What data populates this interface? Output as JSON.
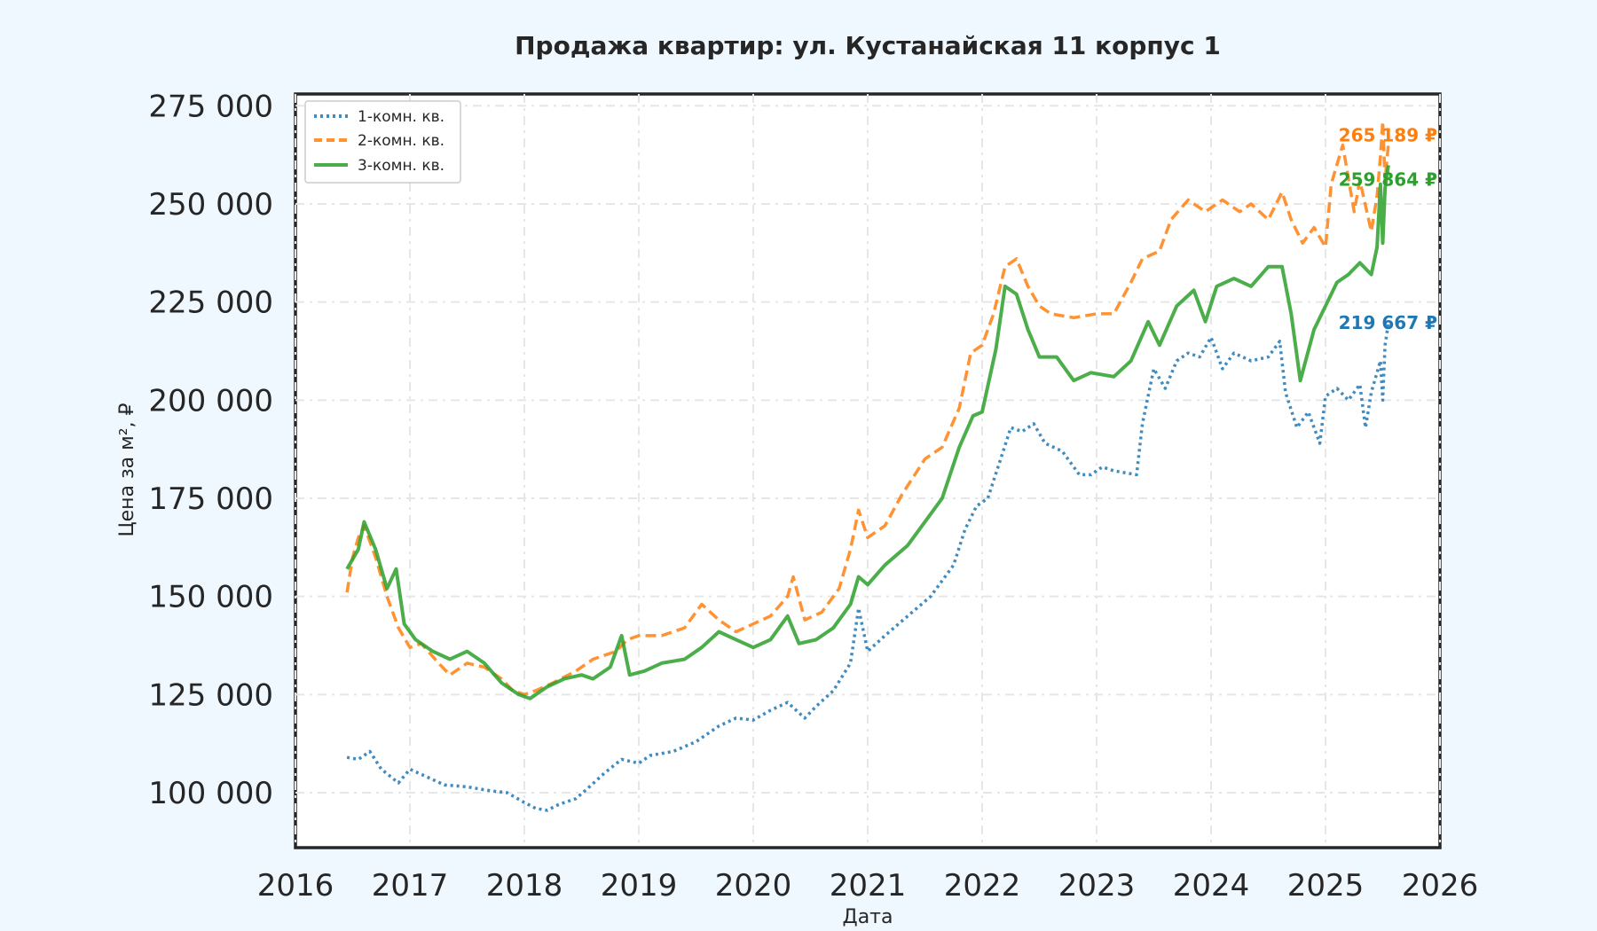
{
  "chart_data": {
    "type": "line",
    "title": "Продажа квартир: ул. Кустанайская 11 корпус 1",
    "xlabel": "Дата",
    "ylabel": "Цена за м², ₽",
    "xlim": [
      2016.0,
      2026.0
    ],
    "ylim": [
      86000,
      278000
    ],
    "x_ticks": [
      2016,
      2017,
      2018,
      2019,
      2020,
      2021,
      2022,
      2023,
      2024,
      2025,
      2026
    ],
    "x_tick_labels": [
      "2016",
      "2017",
      "2018",
      "2019",
      "2020",
      "2021",
      "2022",
      "2023",
      "2024",
      "2025",
      "2026"
    ],
    "y_ticks": [
      100000,
      125000,
      150000,
      175000,
      200000,
      225000,
      250000,
      275000
    ],
    "y_tick_labels": [
      "100 000",
      "125 000",
      "150 000",
      "175 000",
      "200 000",
      "225 000",
      "250 000",
      "275 000"
    ],
    "grid": true,
    "legend_position": "top-left",
    "series": [
      {
        "name": "1-комн. кв.",
        "color": "#1f77b4",
        "style": "dotted",
        "end_label": "219 667 ₽",
        "end_value": 219667,
        "points": [
          [
            2016.45,
            109000
          ],
          [
            2016.55,
            108500
          ],
          [
            2016.65,
            110500
          ],
          [
            2016.75,
            106000
          ],
          [
            2016.9,
            102500
          ],
          [
            2017.0,
            106000
          ],
          [
            2017.15,
            104000
          ],
          [
            2017.3,
            102000
          ],
          [
            2017.5,
            101500
          ],
          [
            2017.7,
            100500
          ],
          [
            2017.85,
            100000
          ],
          [
            2018.0,
            97500
          ],
          [
            2018.1,
            96000
          ],
          [
            2018.2,
            95500
          ],
          [
            2018.3,
            97000
          ],
          [
            2018.45,
            98500
          ],
          [
            2018.55,
            101000
          ],
          [
            2018.7,
            105000
          ],
          [
            2018.85,
            108500
          ],
          [
            2019.0,
            107500
          ],
          [
            2019.1,
            109500
          ],
          [
            2019.3,
            110500
          ],
          [
            2019.5,
            113000
          ],
          [
            2019.7,
            117000
          ],
          [
            2019.85,
            119000
          ],
          [
            2020.0,
            118500
          ],
          [
            2020.15,
            121000
          ],
          [
            2020.3,
            123000
          ],
          [
            2020.45,
            119000
          ],
          [
            2020.55,
            122000
          ],
          [
            2020.7,
            126000
          ],
          [
            2020.85,
            133000
          ],
          [
            2020.92,
            147000
          ],
          [
            2021.0,
            136000
          ],
          [
            2021.15,
            140000
          ],
          [
            2021.35,
            145000
          ],
          [
            2021.55,
            150000
          ],
          [
            2021.75,
            158000
          ],
          [
            2021.85,
            167000
          ],
          [
            2021.95,
            173000
          ],
          [
            2022.05,
            175000
          ],
          [
            2022.15,
            184000
          ],
          [
            2022.25,
            193000
          ],
          [
            2022.35,
            192000
          ],
          [
            2022.45,
            194000
          ],
          [
            2022.55,
            189000
          ],
          [
            2022.7,
            187000
          ],
          [
            2022.85,
            181000
          ],
          [
            2022.95,
            181000
          ],
          [
            2023.05,
            183000
          ],
          [
            2023.15,
            182000
          ],
          [
            2023.35,
            181000
          ],
          [
            2023.4,
            194000
          ],
          [
            2023.5,
            208000
          ],
          [
            2023.6,
            203000
          ],
          [
            2023.7,
            210000
          ],
          [
            2023.8,
            212000
          ],
          [
            2023.9,
            211000
          ],
          [
            2024.0,
            216000
          ],
          [
            2024.1,
            208000
          ],
          [
            2024.2,
            212000
          ],
          [
            2024.35,
            210000
          ],
          [
            2024.5,
            211000
          ],
          [
            2024.6,
            215000
          ],
          [
            2024.65,
            202000
          ],
          [
            2024.75,
            193000
          ],
          [
            2024.85,
            197000
          ],
          [
            2024.95,
            189000
          ],
          [
            2025.0,
            201000
          ],
          [
            2025.1,
            203000
          ],
          [
            2025.2,
            200000
          ],
          [
            2025.3,
            204000
          ],
          [
            2025.35,
            193000
          ],
          [
            2025.4,
            202000
          ],
          [
            2025.48,
            210000
          ],
          [
            2025.5,
            200000
          ],
          [
            2025.52,
            214000
          ],
          [
            2025.55,
            219667
          ]
        ]
      },
      {
        "name": "2-комн. кв.",
        "color": "#ff7f0e",
        "style": "dashed",
        "end_label": "265 189 ₽",
        "end_value": 265189,
        "points": [
          [
            2016.45,
            151000
          ],
          [
            2016.5,
            160000
          ],
          [
            2016.55,
            165000
          ],
          [
            2016.6,
            168000
          ],
          [
            2016.7,
            160000
          ],
          [
            2016.8,
            150000
          ],
          [
            2016.9,
            142000
          ],
          [
            2017.0,
            137000
          ],
          [
            2017.1,
            138000
          ],
          [
            2017.25,
            133000
          ],
          [
            2017.35,
            130000
          ],
          [
            2017.5,
            133000
          ],
          [
            2017.65,
            132000
          ],
          [
            2017.8,
            129000
          ],
          [
            2017.9,
            126000
          ],
          [
            2018.0,
            125000
          ],
          [
            2018.1,
            126000
          ],
          [
            2018.25,
            128000
          ],
          [
            2018.45,
            131000
          ],
          [
            2018.6,
            134000
          ],
          [
            2018.8,
            136000
          ],
          [
            2018.9,
            139000
          ],
          [
            2019.0,
            140000
          ],
          [
            2019.2,
            140000
          ],
          [
            2019.4,
            142000
          ],
          [
            2019.55,
            148000
          ],
          [
            2019.7,
            144000
          ],
          [
            2019.85,
            141000
          ],
          [
            2020.0,
            143000
          ],
          [
            2020.15,
            145000
          ],
          [
            2020.3,
            150000
          ],
          [
            2020.35,
            155000
          ],
          [
            2020.45,
            144000
          ],
          [
            2020.6,
            146000
          ],
          [
            2020.75,
            152000
          ],
          [
            2020.85,
            162000
          ],
          [
            2020.92,
            172000
          ],
          [
            2021.0,
            165000
          ],
          [
            2021.15,
            168000
          ],
          [
            2021.3,
            176000
          ],
          [
            2021.5,
            185000
          ],
          [
            2021.65,
            188000
          ],
          [
            2021.8,
            198000
          ],
          [
            2021.9,
            212000
          ],
          [
            2022.0,
            214000
          ],
          [
            2022.1,
            222000
          ],
          [
            2022.2,
            234000
          ],
          [
            2022.3,
            236000
          ],
          [
            2022.4,
            229000
          ],
          [
            2022.5,
            224000
          ],
          [
            2022.6,
            222000
          ],
          [
            2022.8,
            221000
          ],
          [
            2023.0,
            222000
          ],
          [
            2023.15,
            222000
          ],
          [
            2023.3,
            230000
          ],
          [
            2023.4,
            236000
          ],
          [
            2023.55,
            238000
          ],
          [
            2023.65,
            246000
          ],
          [
            2023.8,
            251000
          ],
          [
            2023.95,
            248000
          ],
          [
            2024.1,
            251000
          ],
          [
            2024.25,
            248000
          ],
          [
            2024.35,
            250000
          ],
          [
            2024.5,
            246000
          ],
          [
            2024.62,
            253000
          ],
          [
            2024.7,
            246000
          ],
          [
            2024.8,
            240000
          ],
          [
            2024.9,
            244000
          ],
          [
            2025.0,
            239000
          ],
          [
            2025.05,
            255000
          ],
          [
            2025.15,
            265000
          ],
          [
            2025.25,
            248000
          ],
          [
            2025.3,
            256000
          ],
          [
            2025.4,
            243000
          ],
          [
            2025.45,
            252000
          ],
          [
            2025.48,
            262000
          ],
          [
            2025.5,
            271000
          ],
          [
            2025.52,
            256000
          ],
          [
            2025.55,
            265189
          ]
        ]
      },
      {
        "name": "3-комн. кв.",
        "color": "#2ca02c",
        "style": "solid",
        "end_label": "259 864 ₽",
        "end_value": 259864,
        "points": [
          [
            2016.45,
            157000
          ],
          [
            2016.55,
            162000
          ],
          [
            2016.6,
            169000
          ],
          [
            2016.7,
            162000
          ],
          [
            2016.8,
            152000
          ],
          [
            2016.88,
            157000
          ],
          [
            2016.95,
            143000
          ],
          [
            2017.05,
            139000
          ],
          [
            2017.2,
            136000
          ],
          [
            2017.35,
            134000
          ],
          [
            2017.5,
            136000
          ],
          [
            2017.65,
            133000
          ],
          [
            2017.8,
            128000
          ],
          [
            2017.95,
            125000
          ],
          [
            2018.05,
            124000
          ],
          [
            2018.2,
            127000
          ],
          [
            2018.35,
            129000
          ],
          [
            2018.5,
            130000
          ],
          [
            2018.6,
            129000
          ],
          [
            2018.75,
            132000
          ],
          [
            2018.85,
            140000
          ],
          [
            2018.92,
            130000
          ],
          [
            2019.05,
            131000
          ],
          [
            2019.2,
            133000
          ],
          [
            2019.4,
            134000
          ],
          [
            2019.55,
            137000
          ],
          [
            2019.7,
            141000
          ],
          [
            2019.85,
            139000
          ],
          [
            2020.0,
            137000
          ],
          [
            2020.15,
            139000
          ],
          [
            2020.3,
            145000
          ],
          [
            2020.4,
            138000
          ],
          [
            2020.55,
            139000
          ],
          [
            2020.7,
            142000
          ],
          [
            2020.85,
            148000
          ],
          [
            2020.92,
            155000
          ],
          [
            2021.0,
            153000
          ],
          [
            2021.15,
            158000
          ],
          [
            2021.35,
            163000
          ],
          [
            2021.5,
            169000
          ],
          [
            2021.65,
            175000
          ],
          [
            2021.8,
            188000
          ],
          [
            2021.92,
            196000
          ],
          [
            2022.0,
            197000
          ],
          [
            2022.12,
            213000
          ],
          [
            2022.2,
            229000
          ],
          [
            2022.3,
            227000
          ],
          [
            2022.4,
            218000
          ],
          [
            2022.5,
            211000
          ],
          [
            2022.65,
            211000
          ],
          [
            2022.8,
            205000
          ],
          [
            2022.95,
            207000
          ],
          [
            2023.15,
            206000
          ],
          [
            2023.3,
            210000
          ],
          [
            2023.45,
            220000
          ],
          [
            2023.55,
            214000
          ],
          [
            2023.7,
            224000
          ],
          [
            2023.85,
            228000
          ],
          [
            2023.95,
            220000
          ],
          [
            2024.05,
            229000
          ],
          [
            2024.2,
            231000
          ],
          [
            2024.35,
            229000
          ],
          [
            2024.5,
            234000
          ],
          [
            2024.62,
            234000
          ],
          [
            2024.7,
            222000
          ],
          [
            2024.78,
            205000
          ],
          [
            2024.9,
            218000
          ],
          [
            2025.0,
            224000
          ],
          [
            2025.1,
            230000
          ],
          [
            2025.2,
            232000
          ],
          [
            2025.3,
            235000
          ],
          [
            2025.4,
            232000
          ],
          [
            2025.45,
            239000
          ],
          [
            2025.48,
            255000
          ],
          [
            2025.5,
            240000
          ],
          [
            2025.52,
            254000
          ],
          [
            2025.55,
            259864
          ]
        ]
      }
    ]
  }
}
